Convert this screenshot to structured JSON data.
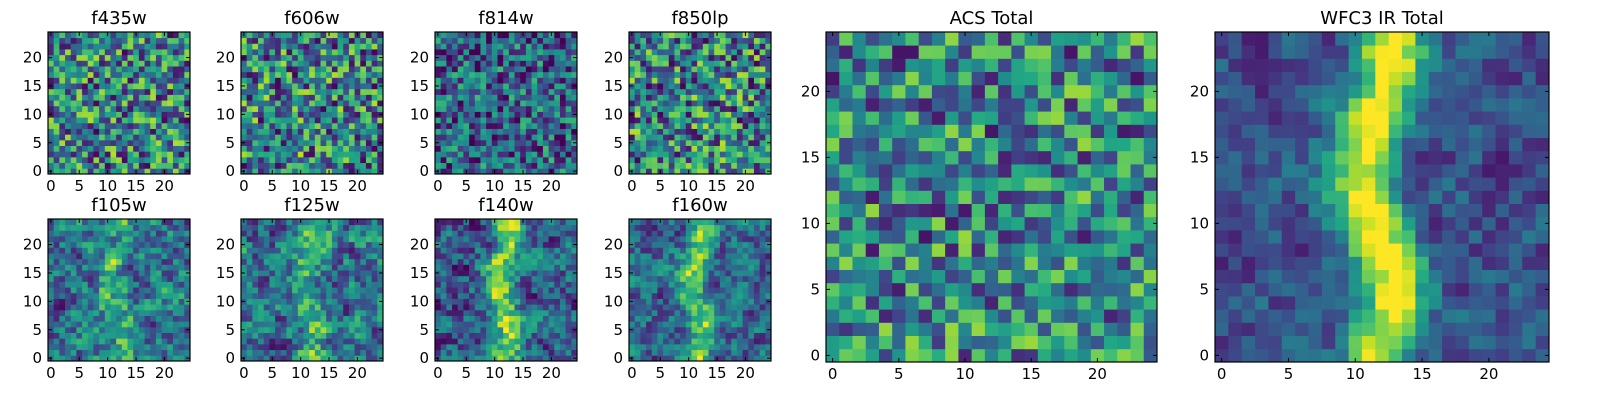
{
  "figure": {
    "background": "#ffffff",
    "colormap": "viridis"
  },
  "chart_data": [
    {
      "type": "heatmap",
      "title": "f435w",
      "xlim": [
        -0.5,
        24.5
      ],
      "ylim": [
        -0.5,
        24.5
      ],
      "xticks": [
        0,
        5,
        10,
        15,
        20
      ],
      "yticks": [
        0,
        5,
        10,
        15,
        20
      ],
      "grid": false,
      "zlim": [
        0,
        1
      ],
      "seed": 435,
      "noise": 0.55,
      "smooth": 0,
      "ridge": null
    },
    {
      "type": "heatmap",
      "title": "f606w",
      "xlim": [
        -0.5,
        24.5
      ],
      "ylim": [
        -0.5,
        24.5
      ],
      "xticks": [
        0,
        5,
        10,
        15,
        20
      ],
      "yticks": [
        0,
        5,
        10,
        15,
        20
      ],
      "grid": false,
      "zlim": [
        0,
        1
      ],
      "seed": 606,
      "noise": 0.55,
      "smooth": 0,
      "ridge": null
    },
    {
      "type": "heatmap",
      "title": "f814w",
      "xlim": [
        -0.5,
        24.5
      ],
      "ylim": [
        -0.5,
        24.5
      ],
      "xticks": [
        0,
        5,
        10,
        15,
        20
      ],
      "yticks": [
        0,
        5,
        10,
        15,
        20
      ],
      "grid": false,
      "zlim": [
        0,
        1
      ],
      "seed": 814,
      "noise": 0.45,
      "smooth": 0,
      "ridge": null,
      "offset": -0.12
    },
    {
      "type": "heatmap",
      "title": "f850lp",
      "xlim": [
        -0.5,
        24.5
      ],
      "ylim": [
        -0.5,
        24.5
      ],
      "xticks": [
        0,
        5,
        10,
        15,
        20
      ],
      "yticks": [
        0,
        5,
        10,
        15,
        20
      ],
      "grid": false,
      "zlim": [
        0,
        1
      ],
      "seed": 850,
      "noise": 0.55,
      "smooth": 0,
      "ridge": null
    },
    {
      "type": "heatmap",
      "title": "f105w",
      "xlim": [
        -0.5,
        24.5
      ],
      "ylim": [
        -0.5,
        24.5
      ],
      "xticks": [
        0,
        5,
        10,
        15,
        20
      ],
      "yticks": [
        0,
        5,
        10,
        15,
        20
      ],
      "grid": false,
      "zlim": [
        0,
        1
      ],
      "seed": 105,
      "noise": 0.6,
      "smooth": 1,
      "ridge": 0.25
    },
    {
      "type": "heatmap",
      "title": "f125w",
      "xlim": [
        -0.5,
        24.5
      ],
      "ylim": [
        -0.5,
        24.5
      ],
      "xticks": [
        0,
        5,
        10,
        15,
        20
      ],
      "yticks": [
        0,
        5,
        10,
        15,
        20
      ],
      "grid": false,
      "zlim": [
        0,
        1
      ],
      "seed": 125,
      "noise": 0.6,
      "smooth": 1,
      "ridge": 0.3
    },
    {
      "type": "heatmap",
      "title": "f140w",
      "xlim": [
        -0.5,
        24.5
      ],
      "ylim": [
        -0.5,
        24.5
      ],
      "xticks": [
        0,
        5,
        10,
        15,
        20
      ],
      "yticks": [
        0,
        5,
        10,
        15,
        20
      ],
      "grid": false,
      "zlim": [
        0,
        1
      ],
      "seed": 140,
      "noise": 0.55,
      "smooth": 1,
      "ridge": 0.55
    },
    {
      "type": "heatmap",
      "title": "f160w",
      "xlim": [
        -0.5,
        24.5
      ],
      "ylim": [
        -0.5,
        24.5
      ],
      "xticks": [
        0,
        5,
        10,
        15,
        20
      ],
      "yticks": [
        0,
        5,
        10,
        15,
        20
      ],
      "grid": false,
      "zlim": [
        0,
        1
      ],
      "seed": 160,
      "noise": 0.5,
      "smooth": 1,
      "ridge": 0.5
    },
    {
      "type": "heatmap",
      "title": "ACS Total",
      "xlim": [
        -0.5,
        24.5
      ],
      "ylim": [
        -0.5,
        24.5
      ],
      "xticks": [
        0,
        5,
        10,
        15,
        20
      ],
      "yticks": [
        0,
        5,
        10,
        15,
        20
      ],
      "grid": false,
      "zlim": [
        0,
        1
      ],
      "seed": 999,
      "noise": 0.5,
      "smooth": 0,
      "ridge": null
    },
    {
      "type": "heatmap",
      "title": "WFC3 IR Total",
      "xlim": [
        -0.5,
        24.5
      ],
      "ylim": [
        -0.5,
        24.5
      ],
      "xticks": [
        0,
        5,
        10,
        15,
        20
      ],
      "yticks": [
        0,
        5,
        10,
        15,
        20
      ],
      "grid": false,
      "zlim": [
        0,
        1
      ],
      "seed": 321,
      "noise": 0.35,
      "smooth": 1,
      "ridge": 0.75
    }
  ]
}
